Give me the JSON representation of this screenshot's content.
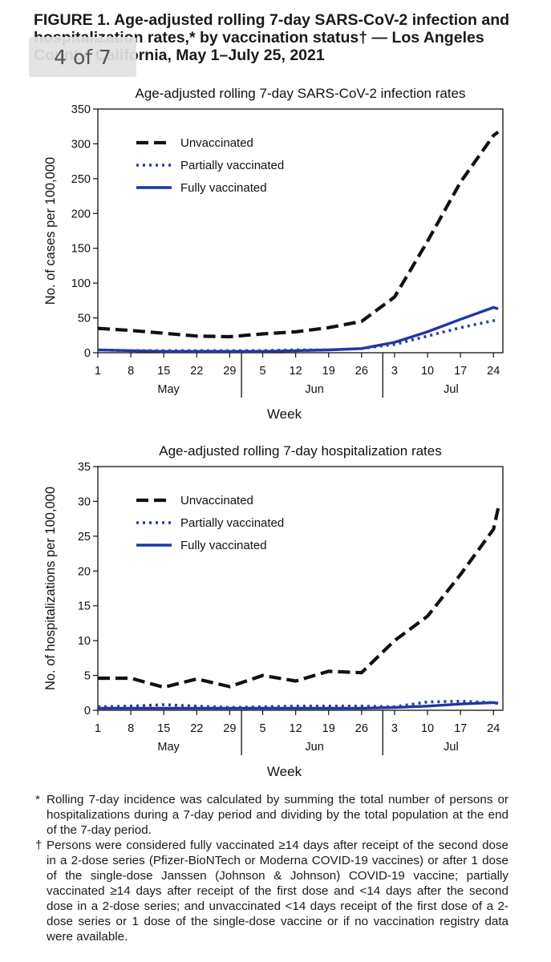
{
  "figure": {
    "label": "FIGURE 1.",
    "title": "Age-adjusted rolling 7-day SARS-CoV-2 infection and hospitalization rates,* by vaccination status† — Los Angeles County, California, May 1–July 25, 2021"
  },
  "page_indicator": "4 of 7",
  "chart_data": [
    {
      "type": "line",
      "title": "Age-adjusted rolling 7-day SARS-CoV-2 infection rates",
      "xlabel": "Week",
      "ylabel": "No. of cases per 100,000",
      "ylim": [
        0,
        350
      ],
      "yticks": [
        "0",
        "50",
        "100",
        "150",
        "200",
        "250",
        "300",
        "350"
      ],
      "xticks": [
        "1",
        "8",
        "15",
        "22",
        "29",
        "5",
        "12",
        "19",
        "26",
        "3",
        "10",
        "17",
        "24"
      ],
      "months": [
        "May",
        "Jun",
        "Jul"
      ],
      "legend_position": "top-left",
      "x": [
        "May 1",
        "May 8",
        "May 15",
        "May 22",
        "May 29",
        "Jun 5",
        "Jun 12",
        "Jun 19",
        "Jun 26",
        "Jul 3",
        "Jul 10",
        "Jul 17",
        "Jul 24",
        "Jul 25"
      ],
      "series": [
        {
          "name": "Unvaccinated",
          "style": "dashed",
          "color": "#111111",
          "values": [
            35,
            32,
            28,
            24,
            23,
            27,
            30,
            36,
            45,
            80,
            160,
            245,
            312,
            317
          ]
        },
        {
          "name": "Partially vaccinated",
          "style": "dotted",
          "color": "#2b3e9c",
          "values": [
            4,
            3,
            3,
            3,
            3,
            3,
            4,
            4,
            6,
            12,
            24,
            36,
            46,
            46
          ]
        },
        {
          "name": "Fully vaccinated",
          "style": "solid",
          "color": "#1f36a8",
          "values": [
            4,
            3,
            2,
            2,
            2,
            2,
            3,
            4,
            6,
            15,
            30,
            48,
            65,
            63
          ]
        }
      ]
    },
    {
      "type": "line",
      "title": "Age-adjusted rolling 7-day hospitalization rates",
      "xlabel": "Week",
      "ylabel": "No. of hospitalizations per 100,000",
      "ylim": [
        0,
        35
      ],
      "yticks": [
        "0",
        "5",
        "10",
        "15",
        "20",
        "25",
        "30",
        "35"
      ],
      "xticks": [
        "1",
        "8",
        "15",
        "22",
        "29",
        "5",
        "12",
        "19",
        "26",
        "3",
        "10",
        "17",
        "24"
      ],
      "months": [
        "May",
        "Jun",
        "Jul"
      ],
      "legend_position": "top-left",
      "x": [
        "May 1",
        "May 8",
        "May 15",
        "May 22",
        "May 29",
        "Jun 5",
        "Jun 12",
        "Jun 19",
        "Jun 26",
        "Jul 3",
        "Jul 10",
        "Jul 17",
        "Jul 24",
        "Jul 25"
      ],
      "series": [
        {
          "name": "Unvaccinated",
          "style": "dashed",
          "color": "#111111",
          "values": [
            4.6,
            4.6,
            3.3,
            4.5,
            3.4,
            5.0,
            4.2,
            5.6,
            5.4,
            10.0,
            13.5,
            19.5,
            26.0,
            29.0
          ]
        },
        {
          "name": "Partially vaccinated",
          "style": "dotted",
          "color": "#2b3e9c",
          "values": [
            0.5,
            0.6,
            0.8,
            0.6,
            0.4,
            0.5,
            0.6,
            0.6,
            0.6,
            0.5,
            1.2,
            1.3,
            1.1,
            1.0
          ]
        },
        {
          "name": "Fully vaccinated",
          "style": "solid",
          "color": "#1f36a8",
          "values": [
            0.3,
            0.3,
            0.3,
            0.3,
            0.3,
            0.3,
            0.3,
            0.3,
            0.3,
            0.4,
            0.6,
            0.9,
            1.1,
            1.0
          ]
        }
      ]
    }
  ],
  "footnotes": [
    {
      "mark": "*",
      "text": "Rolling 7-day incidence was calculated by summing the total number of persons or hospitalizations during a 7-day period and dividing by the total population at the end of the 7-day period."
    },
    {
      "mark": "†",
      "text": "Persons were considered fully vaccinated ≥14 days after receipt of the second dose in a 2-dose series (Pfizer-BioNTech or Moderna COVID-19 vaccines) or after 1 dose of the single-dose Janssen (Johnson & Johnson) COVID-19 vaccine; partially vaccinated ≥14 days after receipt of the first dose and <14 days after the second dose in a 2-dose series; and unvaccinated <14 days receipt of the first dose of a 2-dose series or 1 dose of the single-dose vaccine or if no vaccination registry data were available."
    }
  ]
}
